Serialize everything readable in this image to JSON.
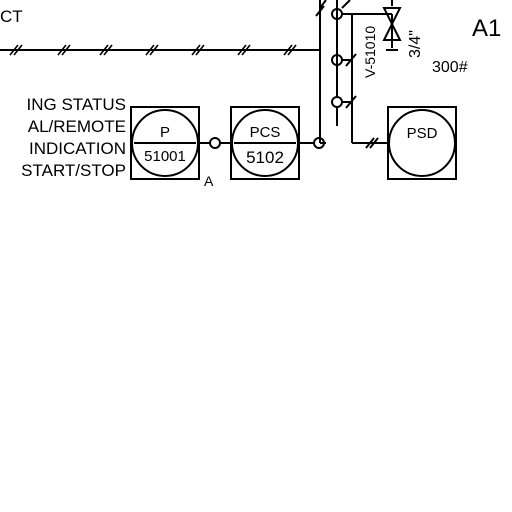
{
  "top_left_text": "CT",
  "sheet_label": "A1",
  "status_lines": [
    "ING STATUS",
    "AL/REMOTE",
    "INDICATION",
    "START/STOP"
  ],
  "instruments": [
    {
      "id": "p",
      "line1": "P",
      "line2": "51001"
    },
    {
      "id": "pcs",
      "line1": "PCS",
      "line2": "5102"
    },
    {
      "id": "psd",
      "line1": "PSD",
      "line2": ""
    }
  ],
  "connection_label": "A",
  "valve": {
    "tag": "V-51010",
    "size": "3/4\"",
    "rating": "300#"
  },
  "colors": {
    "ink": "#000000",
    "paper": "#ffffff"
  }
}
